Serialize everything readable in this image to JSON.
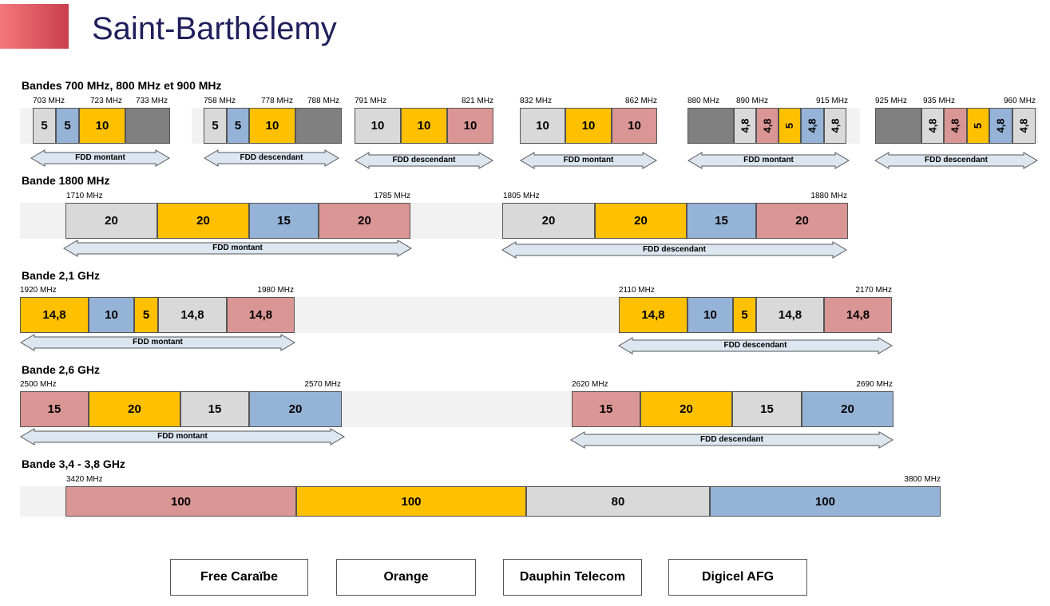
{
  "title": "Saint-Barthélemy",
  "colors": {
    "Free Caraïbe": "#d9d9d9",
    "Orange": "#ffc000",
    "Dauphin Telecom": "#95b3d7",
    "Digicel AFG": "#da9694",
    "unassigned": "#808080",
    "background": "#f2f2f2",
    "arrow_fill": "#dce6f1"
  },
  "sections": [
    {
      "label": "Bandes 700 MHz, 800 MHz et 900 MHz"
    },
    {
      "label": "Bande 1800 MHz"
    },
    {
      "label": "Bande 2,1 GHz"
    },
    {
      "label": "Bande 2,6 GHz"
    },
    {
      "label": "Bande 3,4 - 3,8 GHz"
    }
  ],
  "diagram": {
    "freq_labels": [
      "703 MHz",
      "723 MHz",
      "733 MHz",
      "758 MHz",
      "778 MHz",
      "788 MHz",
      "791 MHz",
      "821 MHz",
      "832 MHz",
      "862 MHz",
      "880 MHz",
      "890 MHz",
      "915 MHz",
      "925 MHz",
      "935 MHz",
      "960 MHz",
      "1710 MHz",
      "1785 MHz",
      "1805 MHz",
      "1880 MHz",
      "1920 MHz",
      "1980 MHz",
      "2110 MHz",
      "2170 MHz",
      "2500 MHz",
      "2570 MHz",
      "2620 MHz",
      "2690 MHz",
      "3420 MHz",
      "3800 MHz"
    ],
    "block_labels": [
      "5",
      "5",
      "10",
      "",
      "5",
      "5",
      "10",
      "",
      "10",
      "10",
      "10",
      "10",
      "10",
      "10",
      "",
      "4,8",
      "4,8",
      "5",
      "4,8",
      "4,8",
      "",
      "4,8",
      "4,8",
      "5",
      "4,8",
      "4,8",
      "20",
      "20",
      "15",
      "20",
      "20",
      "20",
      "15",
      "20",
      "14,8",
      "10",
      "5",
      "14,8",
      "14,8",
      "14,8",
      "10",
      "5",
      "14,8",
      "14,8",
      "15",
      "20",
      "15",
      "20",
      "15",
      "20",
      "15",
      "20",
      "100",
      "100",
      "80",
      "100"
    ],
    "block_operators": [
      "Free Caraïbe",
      "Dauphin Telecom",
      "Orange",
      "unassigned",
      "Free Caraïbe",
      "Dauphin Telecom",
      "Orange",
      "unassigned",
      "Free Caraïbe",
      "Orange",
      "Digicel AFG",
      "Free Caraïbe",
      "Orange",
      "Digicel AFG",
      "unassigned",
      "Free Caraïbe",
      "Digicel AFG",
      "Orange",
      "Dauphin Telecom",
      "Free Caraïbe",
      "unassigned",
      "Free Caraïbe",
      "Digicel AFG",
      "Orange",
      "Dauphin Telecom",
      "Free Caraïbe",
      "Free Caraïbe",
      "Orange",
      "Dauphin Telecom",
      "Digicel AFG",
      "Free Caraïbe",
      "Orange",
      "Dauphin Telecom",
      "Digicel AFG",
      "Orange",
      "Dauphin Telecom",
      "Orange",
      "Free Caraïbe",
      "Digicel AFG",
      "Orange",
      "Dauphin Telecom",
      "Orange",
      "Free Caraïbe",
      "Digicel AFG",
      "Digicel AFG",
      "Orange",
      "Free Caraïbe",
      "Dauphin Telecom",
      "Digicel AFG",
      "Orange",
      "Free Caraïbe",
      "Dauphin Telecom",
      "Digicel AFG",
      "Orange",
      "Free Caraïbe",
      "Dauphin Telecom"
    ],
    "arrow_labels": [
      "FDD montant",
      "FDD descendant",
      "FDD descendant",
      "FDD montant",
      "FDD montant",
      "FDD descendant",
      "FDD montant",
      "FDD descendant",
      "FDD montant",
      "FDD descendant",
      "FDD montant",
      "FDD descendant"
    ]
  },
  "legend": [
    {
      "label": "Free Caraïbe"
    },
    {
      "label": "Orange"
    },
    {
      "label": "Dauphin Telecom"
    },
    {
      "label": "Digicel AFG"
    }
  ]
}
